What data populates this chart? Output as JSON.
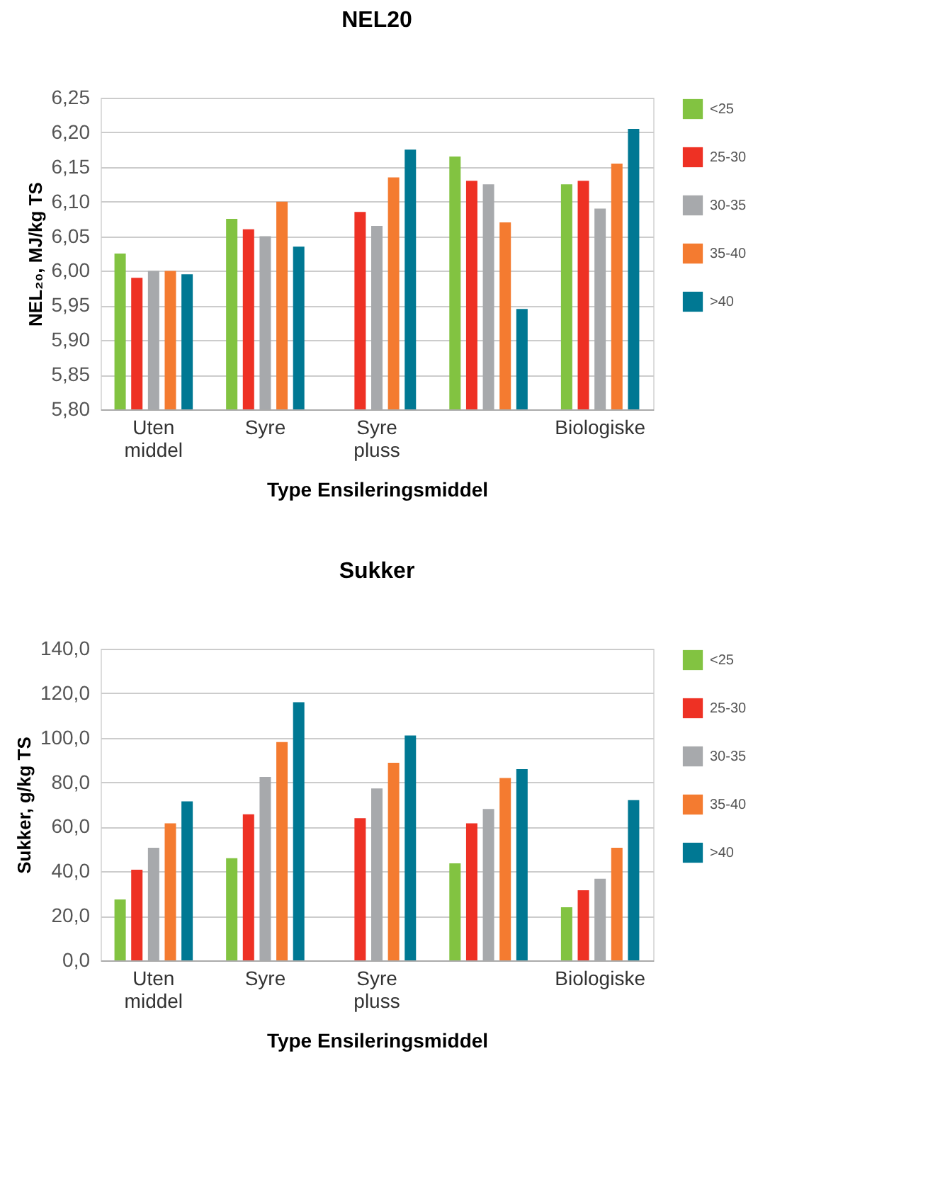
{
  "chart_data": [
    {
      "type": "bar",
      "title": "NEL20",
      "xlabel": "Type Ensileringsmiddel",
      "ylabel": "NEL₂₀, MJ/kg TS",
      "categories": [
        "Uten\nmiddel",
        "Syre",
        "Syre\npluss",
        null,
        "Biologiske"
      ],
      "series": [
        {
          "name": "<25",
          "color": "#82c341",
          "values": [
            6.025,
            6.075,
            null,
            6.165,
            6.125
          ]
        },
        {
          "name": "25-30",
          "color": "#ee3124",
          "values": [
            5.99,
            6.06,
            6.085,
            6.13,
            6.13
          ]
        },
        {
          "name": "30-35",
          "color": "#a7a9ac",
          "values": [
            6.0,
            6.05,
            6.065,
            6.125,
            6.09
          ]
        },
        {
          "name": "35-40",
          "color": "#f47b30",
          "values": [
            6.0,
            6.1,
            6.135,
            6.07,
            6.155
          ]
        },
        {
          "name": ">40",
          "color": "#007893",
          "values": [
            5.995,
            6.035,
            6.175,
            5.945,
            6.205
          ]
        }
      ],
      "ylim": [
        5.8,
        6.25
      ],
      "yticks": [
        {
          "value": 5.8,
          "label": "5,80"
        },
        {
          "value": 5.85,
          "label": "5,85"
        },
        {
          "value": 5.9,
          "label": "5,90"
        },
        {
          "value": 5.95,
          "label": "5,95"
        },
        {
          "value": 6.0,
          "label": "6,00"
        },
        {
          "value": 6.05,
          "label": "6,05"
        },
        {
          "value": 6.1,
          "label": "6,10"
        },
        {
          "value": 6.15,
          "label": "6,15"
        },
        {
          "value": 6.2,
          "label": "6,20"
        },
        {
          "value": 6.25,
          "label": "6,25"
        }
      ],
      "grid": "y",
      "legend": "right"
    },
    {
      "type": "bar",
      "title": "Sukker",
      "xlabel": "Type Ensileringsmiddel",
      "ylabel": "Sukker, g/kg TS",
      "categories": [
        "Uten\nmiddel",
        "Syre",
        "Syre\npluss",
        null,
        "Biologiske"
      ],
      "series": [
        {
          "name": "<25",
          "color": "#82c341",
          "values": [
            27.4,
            45.9,
            null,
            43.6,
            23.9
          ]
        },
        {
          "name": "25-30",
          "color": "#ee3124",
          "values": [
            40.7,
            65.6,
            63.9,
            61.6,
            31.5
          ]
        },
        {
          "name": "30-35",
          "color": "#a7a9ac",
          "values": [
            50.6,
            82.4,
            77.2,
            68.0,
            36.7
          ]
        },
        {
          "name": "35-40",
          "color": "#f47b30",
          "values": [
            61.6,
            98.1,
            88.8,
            81.9,
            50.6
          ]
        },
        {
          "name": ">40",
          "color": "#007893",
          "values": [
            71.4,
            116.0,
            101.0,
            85.9,
            72.0
          ]
        }
      ],
      "ylim": [
        0,
        140
      ],
      "yticks": [
        {
          "value": 0,
          "label": "0,0"
        },
        {
          "value": 20,
          "label": "20,0"
        },
        {
          "value": 40,
          "label": "40,0"
        },
        {
          "value": 60,
          "label": "60,0"
        },
        {
          "value": 80,
          "label": "80,0"
        },
        {
          "value": 100,
          "label": "100,0"
        },
        {
          "value": 120,
          "label": "120,0"
        },
        {
          "value": 140,
          "label": "140,0"
        }
      ],
      "grid": "y",
      "legend": "right"
    }
  ]
}
